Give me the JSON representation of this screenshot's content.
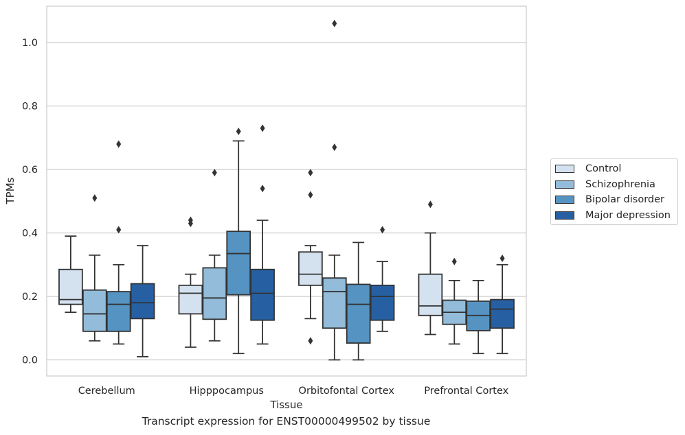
{
  "caption": "Transcript expression for ENST00000499502 by tissue",
  "chart_data": {
    "type": "box",
    "xlabel": "Tissue",
    "ylabel": "TPMs",
    "ylim": [
      -0.05,
      1.12
    ],
    "yticks": [
      "0.0",
      "0.2",
      "0.4",
      "0.6",
      "0.8",
      "1.0"
    ],
    "grid": "horizontal",
    "legend_position": "right",
    "categories": [
      "Cerebellum",
      "Hipppocampus",
      "Orbitofontal Cortex",
      "Prefrontal Cortex"
    ],
    "series": [
      {
        "name": "Control",
        "color": "#d4e2f0",
        "boxes": [
          {
            "whisker_low": 0.15,
            "q1": 0.175,
            "median": 0.19,
            "q3": 0.285,
            "whisker_high": 0.39,
            "outliers": []
          },
          {
            "whisker_low": 0.04,
            "q1": 0.145,
            "median": 0.21,
            "q3": 0.235,
            "whisker_high": 0.27,
            "outliers": [
              0.43,
              0.44
            ]
          },
          {
            "whisker_low": 0.13,
            "q1": 0.235,
            "median": 0.27,
            "q3": 0.34,
            "whisker_high": 0.36,
            "outliers": [
              0.06,
              0.52,
              0.59
            ]
          },
          {
            "whisker_low": 0.08,
            "q1": 0.14,
            "median": 0.17,
            "q3": 0.27,
            "whisker_high": 0.4,
            "outliers": [
              0.49
            ]
          }
        ]
      },
      {
        "name": "Schizophrenia",
        "color": "#92bcd9",
        "boxes": [
          {
            "whisker_low": 0.06,
            "q1": 0.09,
            "median": 0.145,
            "q3": 0.22,
            "whisker_high": 0.33,
            "outliers": [
              0.51
            ]
          },
          {
            "whisker_low": 0.06,
            "q1": 0.128,
            "median": 0.195,
            "q3": 0.29,
            "whisker_high": 0.33,
            "outliers": [
              0.59
            ]
          },
          {
            "whisker_low": 0.0,
            "q1": 0.1,
            "median": 0.215,
            "q3": 0.258,
            "whisker_high": 0.33,
            "outliers": [
              0.67,
              1.06
            ]
          },
          {
            "whisker_low": 0.05,
            "q1": 0.112,
            "median": 0.15,
            "q3": 0.188,
            "whisker_high": 0.25,
            "outliers": [
              0.31
            ]
          }
        ]
      },
      {
        "name": "Bipolar disorder",
        "color": "#5593c2",
        "boxes": [
          {
            "whisker_low": 0.05,
            "q1": 0.09,
            "median": 0.175,
            "q3": 0.215,
            "whisker_high": 0.3,
            "outliers": [
              0.41,
              0.68
            ]
          },
          {
            "whisker_low": 0.02,
            "q1": 0.205,
            "median": 0.335,
            "q3": 0.405,
            "whisker_high": 0.69,
            "outliers": [
              0.72
            ]
          },
          {
            "whisker_low": 0.0,
            "q1": 0.053,
            "median": 0.175,
            "q3": 0.238,
            "whisker_high": 0.37,
            "outliers": []
          },
          {
            "whisker_low": 0.02,
            "q1": 0.092,
            "median": 0.14,
            "q3": 0.185,
            "whisker_high": 0.25,
            "outliers": []
          }
        ]
      },
      {
        "name": "Major depression",
        "color": "#2660a3",
        "boxes": [
          {
            "whisker_low": 0.01,
            "q1": 0.13,
            "median": 0.18,
            "q3": 0.24,
            "whisker_high": 0.36,
            "outliers": []
          },
          {
            "whisker_low": 0.05,
            "q1": 0.125,
            "median": 0.21,
            "q3": 0.285,
            "whisker_high": 0.44,
            "outliers": [
              0.54,
              0.73
            ]
          },
          {
            "whisker_low": 0.09,
            "q1": 0.125,
            "median": 0.2,
            "q3": 0.235,
            "whisker_high": 0.31,
            "outliers": [
              0.41
            ]
          },
          {
            "whisker_low": 0.02,
            "q1": 0.1,
            "median": 0.16,
            "q3": 0.19,
            "whisker_high": 0.3,
            "outliers": [
              0.32
            ]
          }
        ]
      }
    ]
  }
}
